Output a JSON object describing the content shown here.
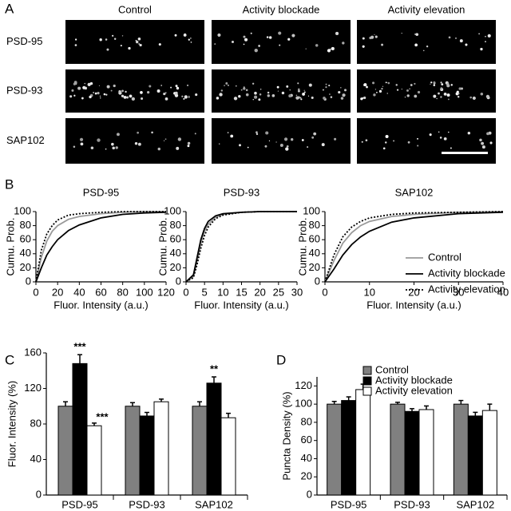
{
  "figure": {
    "panel_labels": [
      "A",
      "B",
      "C",
      "D"
    ],
    "micrographs": {
      "columns": [
        "Control",
        "Activity blockade",
        "Activity elevation"
      ],
      "rows": [
        "PSD-95",
        "PSD-93",
        "SAP102"
      ]
    }
  },
  "chart_data": [
    {
      "type": "line",
      "title": "PSD-95",
      "x_label": "Fluor. Intensity (a.u.)",
      "y_label": "Cumu. Prob.",
      "x": [
        0,
        5,
        10,
        15,
        20,
        30,
        40,
        60,
        80,
        100,
        120
      ],
      "series": [
        {
          "color": "#999999",
          "style": "solid",
          "values": [
            0,
            35,
            58,
            72,
            80,
            89,
            93,
            97,
            99,
            100,
            100
          ]
        },
        {
          "color": "#000000",
          "style": "solid",
          "values": [
            0,
            20,
            38,
            50,
            60,
            73,
            81,
            91,
            96,
            98,
            99
          ]
        },
        {
          "color": "#000000",
          "style": "dotted",
          "values": [
            0,
            45,
            68,
            80,
            88,
            95,
            97,
            99,
            100,
            100,
            100
          ]
        }
      ],
      "xlim": [
        0,
        120
      ],
      "xticks": [
        0,
        20,
        40,
        60,
        80,
        100,
        120
      ],
      "ylim": [
        0,
        100
      ],
      "yticks": [
        0,
        20,
        40,
        60,
        80,
        100
      ]
    },
    {
      "type": "line",
      "title": "PSD-93",
      "x_label": "Fluor. Intensity (a.u.)",
      "y_label": "Cumu. Prob.",
      "x": [
        0,
        2,
        3,
        4,
        5,
        6,
        8,
        10,
        15,
        20,
        30
      ],
      "series": [
        {
          "color": "#999999",
          "style": "solid",
          "values": [
            0,
            8,
            30,
            55,
            72,
            82,
            92,
            96,
            99,
            100,
            100
          ]
        },
        {
          "color": "#000000",
          "style": "solid",
          "values": [
            0,
            10,
            35,
            60,
            76,
            86,
            94,
            97,
            99,
            100,
            100
          ]
        },
        {
          "color": "#000000",
          "style": "dotted",
          "values": [
            0,
            6,
            25,
            48,
            66,
            78,
            90,
            95,
            99,
            100,
            100
          ]
        }
      ],
      "xlim": [
        0,
        30
      ],
      "xticks": [
        0,
        5,
        10,
        15,
        20,
        25,
        30
      ],
      "ylim": [
        0,
        100
      ],
      "yticks": [
        0,
        20,
        40,
        60,
        80,
        100
      ]
    },
    {
      "type": "line",
      "title": "SAP102",
      "x_label": "Fluor. Intensity (a.u.)",
      "y_label": "Cumu. Prob.",
      "x": [
        0,
        2,
        4,
        6,
        8,
        10,
        15,
        20,
        30,
        40
      ],
      "series": [
        {
          "name": "Control",
          "color": "#999999",
          "style": "solid",
          "values": [
            0,
            30,
            55,
            70,
            80,
            86,
            93,
            96,
            99,
            100
          ]
        },
        {
          "name": "Activity blockade",
          "color": "#000000",
          "style": "solid",
          "values": [
            0,
            18,
            38,
            53,
            64,
            72,
            85,
            91,
            97,
            99
          ]
        },
        {
          "name": "Activity elevation",
          "color": "#000000",
          "style": "dotted",
          "values": [
            0,
            38,
            64,
            78,
            86,
            91,
            96,
            98,
            99,
            100
          ]
        }
      ],
      "legend": "lower right",
      "xlim": [
        0,
        40
      ],
      "xticks": [
        0,
        10,
        20,
        30,
        40
      ],
      "ylim": [
        0,
        100
      ],
      "yticks": [
        0,
        20,
        40,
        60,
        80,
        100
      ]
    },
    {
      "type": "bar",
      "y_label": "Fluor. Intensity (%)",
      "categories": [
        "PSD-95",
        "PSD-93",
        "SAP102"
      ],
      "series": [
        {
          "color": "#808080",
          "values": [
            100,
            100,
            100
          ],
          "errors": [
            5,
            4,
            5
          ]
        },
        {
          "color": "#000000",
          "values": [
            148,
            89,
            126
          ],
          "errors": [
            10,
            4,
            7
          ],
          "significance": [
            "***",
            null,
            "**"
          ]
        },
        {
          "color": "#ffffff",
          "values": [
            78,
            105,
            87
          ],
          "errors": [
            3,
            3,
            5
          ],
          "significance": [
            "***",
            null,
            null
          ]
        }
      ],
      "ylim": [
        0,
        160
      ],
      "yticks": [
        0,
        40,
        80,
        120,
        160
      ]
    },
    {
      "type": "bar",
      "y_label": "Puncta Density (%)",
      "categories": [
        "PSD-95",
        "PSD-93",
        "SAP102"
      ],
      "series": [
        {
          "name": "Control",
          "color": "#808080",
          "values": [
            100,
            100,
            100
          ],
          "errors": [
            3,
            2,
            4
          ]
        },
        {
          "name": "Activity blockade",
          "color": "#000000",
          "values": [
            104,
            92,
            87
          ],
          "errors": [
            4,
            3,
            4
          ]
        },
        {
          "name": "Activity elevation",
          "color": "#ffffff",
          "values": [
            116,
            94,
            93
          ],
          "errors": [
            6,
            4,
            7
          ]
        }
      ],
      "legend": "upper right",
      "ylim": [
        0,
        130
      ],
      "yticks": [
        0,
        20,
        40,
        60,
        80,
        100,
        120
      ]
    }
  ]
}
